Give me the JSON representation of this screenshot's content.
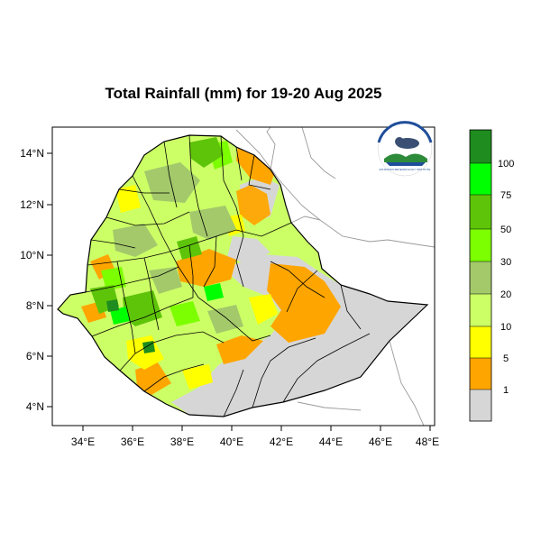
{
  "title": "Total Rainfall (mm) for 19-20 Aug 2025",
  "x_ticks": [
    "34°E",
    "36°E",
    "38°E",
    "40°E",
    "42°E",
    "44°E",
    "46°E",
    "48°E"
  ],
  "y_ticks": [
    "14°N",
    "12°N",
    "10°N",
    "8°N",
    "6°N",
    "4°N"
  ],
  "legend": {
    "labels": [
      "1",
      "5",
      "10",
      "20",
      "30",
      "50",
      "75",
      "100"
    ],
    "colors": [
      "#d6d6d6",
      "#ffa500",
      "#ffff00",
      "#ccff66",
      "#a3c96b",
      "#7cff00",
      "#5ec40a",
      "#00ff00",
      "#1e8c1e"
    ]
  },
  "logo": {
    "text": "ETHIOPIAN METEOROLOGY INSTITUTE"
  },
  "colors": {
    "neighbor_border": "#9a9a9a",
    "boundary": "#000000",
    "frame": "#000000"
  }
}
